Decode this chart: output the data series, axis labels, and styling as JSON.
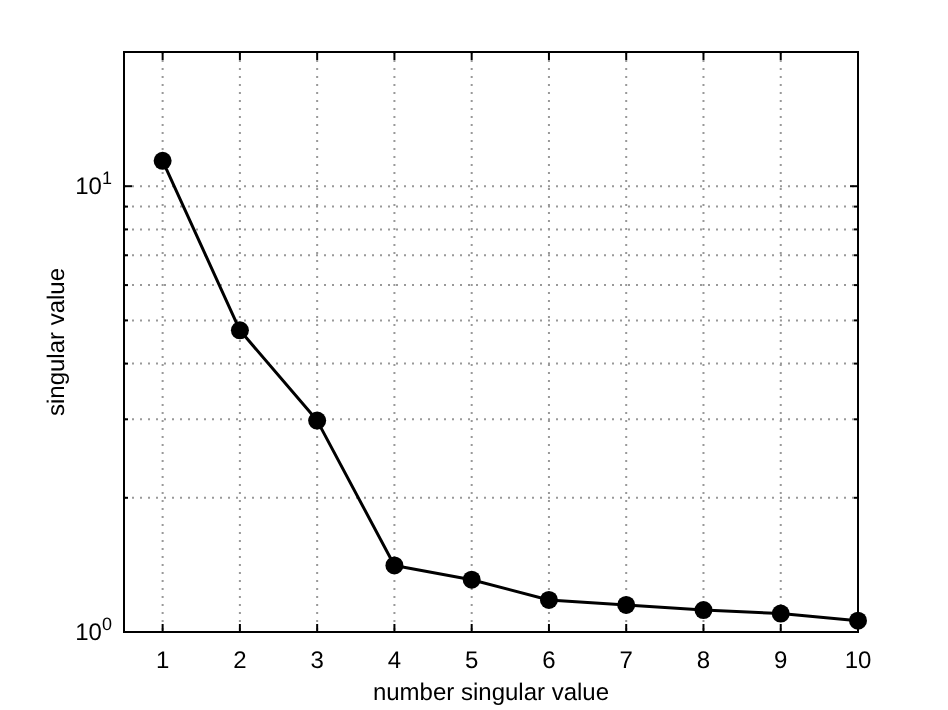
{
  "chart_data": {
    "type": "line",
    "xlabel": "number singular value",
    "ylabel": "singular value",
    "x": [
      1,
      2,
      3,
      4,
      5,
      6,
      7,
      8,
      9,
      10
    ],
    "series": [
      {
        "color": "#000000",
        "values": [
          11.4,
          4.75,
          2.98,
          1.41,
          1.31,
          1.18,
          1.15,
          1.12,
          1.1,
          1.06
        ]
      }
    ],
    "xlim": [
      0.5,
      10
    ],
    "xticks": [
      1,
      2,
      3,
      4,
      5,
      6,
      7,
      8,
      9,
      10
    ],
    "ylim": [
      1,
      20
    ],
    "yticks": [
      {
        "value": 1,
        "label": "10$^{0}$"
      },
      {
        "value": 2,
        "label": null
      },
      {
        "value": 3,
        "label": null
      },
      {
        "value": 4,
        "label": null
      },
      {
        "value": 5,
        "label": null
      },
      {
        "value": 6,
        "label": null
      },
      {
        "value": 7,
        "label": null
      },
      {
        "value": 8,
        "label": null
      },
      {
        "value": 9,
        "label": null
      },
      {
        "value": 10,
        "label": "10$^{1}$"
      },
      {
        "value": 20,
        "label": null
      }
    ],
    "log": "y",
    "grid": true,
    "marker": "circle",
    "line_style": "solid"
  }
}
